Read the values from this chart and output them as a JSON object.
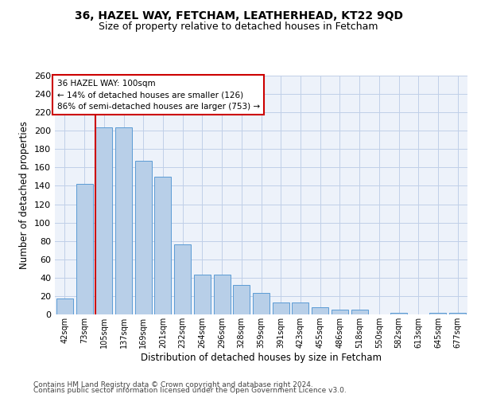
{
  "title": "36, HAZEL WAY, FETCHAM, LEATHERHEAD, KT22 9QD",
  "subtitle": "Size of property relative to detached houses in Fetcham",
  "xlabel": "Distribution of detached houses by size in Fetcham",
  "ylabel": "Number of detached properties",
  "bar_labels": [
    "42sqm",
    "73sqm",
    "105sqm",
    "137sqm",
    "169sqm",
    "201sqm",
    "232sqm",
    "264sqm",
    "296sqm",
    "328sqm",
    "359sqm",
    "391sqm",
    "423sqm",
    "455sqm",
    "486sqm",
    "518sqm",
    "550sqm",
    "582sqm",
    "613sqm",
    "645sqm",
    "677sqm"
  ],
  "bar_values": [
    17,
    142,
    204,
    204,
    167,
    150,
    76,
    43,
    43,
    32,
    23,
    13,
    13,
    8,
    5,
    5,
    0,
    2,
    0,
    2,
    2
  ],
  "bar_color": "#b8cfe8",
  "bar_edge_color": "#5b9bd5",
  "vline_pos": 1.575,
  "vline_color": "#cc0000",
  "annotation_line1": "36 HAZEL WAY: 100sqm",
  "annotation_line2": "← 14% of detached houses are smaller (126)",
  "annotation_line3": "86% of semi-detached houses are larger (753) →",
  "ylim": [
    0,
    260
  ],
  "yticks": [
    0,
    20,
    40,
    60,
    80,
    100,
    120,
    140,
    160,
    180,
    200,
    220,
    240,
    260
  ],
  "footer1": "Contains HM Land Registry data © Crown copyright and database right 2024.",
  "footer2": "Contains public sector information licensed under the Open Government Licence v3.0.",
  "bg_color": "#edf2fa",
  "grid_color": "#c0cfe8"
}
